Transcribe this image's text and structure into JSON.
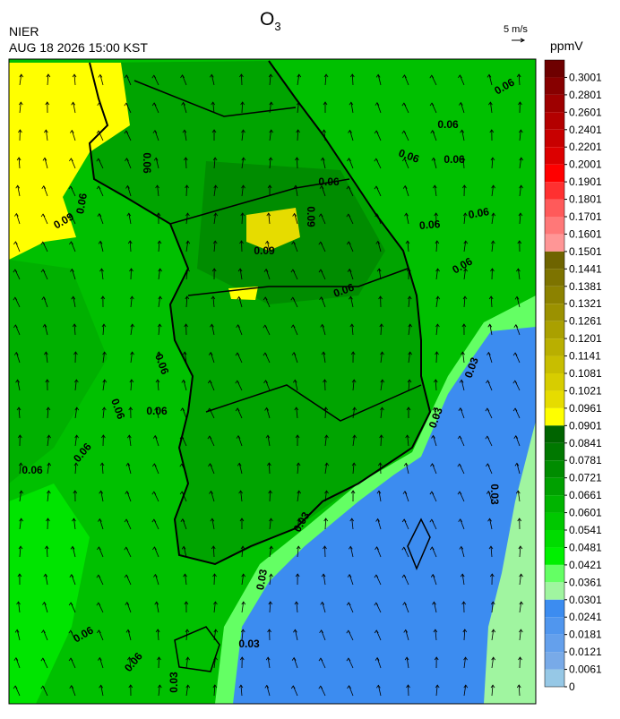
{
  "header": {
    "title": "O",
    "title_subscript": "3",
    "agency": "NIER",
    "datetime": "AUG 18 2026 15:00 KST",
    "wind_scale": "5 m/s",
    "unit": "ppmV"
  },
  "colorbar": {
    "ticks": [
      0.3001,
      0.2801,
      0.2601,
      0.2401,
      0.2201,
      0.2001,
      0.1901,
      0.1801,
      0.1701,
      0.1601,
      0.1501,
      0.1441,
      0.1381,
      0.1321,
      0.1261,
      0.1201,
      0.1141,
      0.1081,
      0.1021,
      0.0961,
      0.0901,
      0.0841,
      0.0781,
      0.0721,
      0.0661,
      0.0601,
      0.0541,
      0.0481,
      0.0421,
      0.0361,
      0.0301,
      0.0241,
      0.0181,
      0.0121,
      0.0061,
      0
    ],
    "colors": [
      "#6e0000",
      "#870000",
      "#9e0000",
      "#b30000",
      "#c80000",
      "#dc0000",
      "#ff0000",
      "#ff3030",
      "#ff5a5a",
      "#ff7878",
      "#ff9696",
      "#6e6400",
      "#7d7300",
      "#8c8200",
      "#9b9100",
      "#aaa000",
      "#b9af00",
      "#c8be00",
      "#d7cd00",
      "#e6dc00",
      "#ffff00",
      "#006400",
      "#007800",
      "#008c00",
      "#00a000",
      "#00b400",
      "#00c800",
      "#00dc00",
      "#00f000",
      "#64ff64",
      "#a0f5a0",
      "#3c8cf0",
      "#5096ee",
      "#64a0ec",
      "#78aae8",
      "#96c8e6"
    ]
  },
  "contour_labels": [
    "0.06",
    "0.06",
    "0.06",
    "0.06",
    "0.06",
    "0.06",
    "0.06",
    "0.06",
    "0.09",
    "0.09",
    "0.09",
    "0.06",
    "0.06",
    "0.06",
    "0.06",
    "0.06",
    "0.06",
    "0.06",
    "0.06",
    "0.03",
    "0.03",
    "0.03",
    "0.03",
    "0.03",
    "0.03",
    "0.06",
    "0.06",
    "0.03"
  ]
}
